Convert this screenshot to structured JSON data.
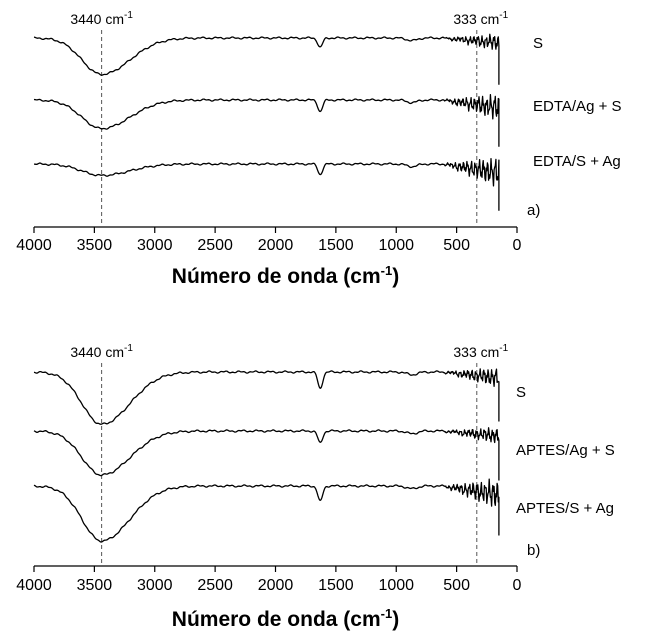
{
  "chart_data": [
    {
      "type": "line",
      "panel_label": "a)",
      "xlabel_main": "Número de onda (cm",
      "xlabel_sup": "-1",
      "xlabel_close": ")",
      "xlim": [
        4000,
        0
      ],
      "xticks": [
        "4000",
        "3500",
        "3000",
        "2500",
        "2000",
        "1500",
        "1000",
        "500",
        "0"
      ],
      "annotations": [
        {
          "text": "3440 cm",
          "sup": "-1",
          "x": 3440
        },
        {
          "text": "333 cm",
          "sup": "-1",
          "x": 333
        }
      ],
      "series": [
        {
          "name": "S",
          "baseline": 0.0,
          "peak_depth": 0.7,
          "amide_depth": 0.18,
          "fp_depth": 0.26
        },
        {
          "name": "EDTA/Ag + S",
          "baseline": 1.0,
          "peak_depth": 0.55,
          "amide_depth": 0.22,
          "fp_depth": 0.42
        },
        {
          "name": "EDTA/S + Ag",
          "baseline": 2.0,
          "peak_depth": 0.22,
          "amide_depth": 0.2,
          "fp_depth": 0.48
        }
      ]
    },
    {
      "type": "line",
      "panel_label": "b)",
      "xlabel_main": "Número de onda (cm",
      "xlabel_sup": "-1",
      "xlabel_close": ")",
      "xlim": [
        4000,
        0
      ],
      "xticks": [
        "4000",
        "3500",
        "3000",
        "2500",
        "2000",
        "1500",
        "1000",
        "500",
        "0"
      ],
      "annotations": [
        {
          "text": "3440 cm",
          "sup": "-1",
          "x": 3440
        },
        {
          "text": "333 cm",
          "sup": "-1",
          "x": 333
        }
      ],
      "series": [
        {
          "name": "S",
          "baseline": 0.0,
          "peak_depth": 0.95,
          "amide_depth": 0.3,
          "fp_depth": 0.3
        },
        {
          "name": "APTES/Ag + S",
          "baseline": 1.0,
          "peak_depth": 0.8,
          "amide_depth": 0.22,
          "fp_depth": 0.25
        },
        {
          "name": "APTES/S + Ag",
          "baseline": 2.0,
          "peak_depth": 1.0,
          "amide_depth": 0.28,
          "fp_depth": 0.45
        }
      ]
    }
  ]
}
